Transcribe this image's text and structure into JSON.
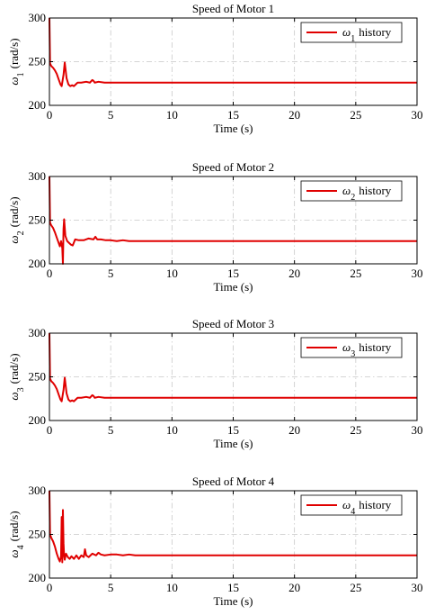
{
  "chart_data": [
    {
      "type": "line",
      "title": "Speed of Motor 1",
      "xlabel": "Time (s)",
      "ylabel_symbol": "ω",
      "ylabel_sub": "1",
      "ylabel_unit": "(rad/s)",
      "xlim": [
        0,
        30
      ],
      "ylim": [
        200,
        300
      ],
      "xticks": [
        "0",
        "5",
        "10",
        "15",
        "20",
        "25",
        "30"
      ],
      "yticks": [
        "200",
        "250",
        "300"
      ],
      "grid": true,
      "legend_position": "top-right",
      "legend": {
        "symbol": "ω",
        "sub": "1",
        "text": "history"
      },
      "color": "#e00000",
      "series": [
        {
          "x": [
            0,
            0.05,
            0.15,
            0.3,
            0.45,
            0.6,
            0.75,
            0.9,
            1.0,
            1.15,
            1.25,
            1.4,
            1.55,
            1.7,
            1.85,
            2.0,
            2.3,
            2.6,
            3.0,
            3.3,
            3.5,
            3.6,
            3.7,
            4.0,
            4.5,
            5,
            6,
            7,
            8,
            10,
            15,
            20,
            25,
            30
          ],
          "y": [
            300,
            248,
            245,
            243,
            240,
            236,
            230,
            224,
            222,
            235,
            249,
            231,
            224,
            222,
            223,
            222,
            226,
            226,
            227,
            226,
            229,
            228,
            226,
            227,
            226,
            226,
            226,
            226,
            226,
            226,
            226,
            226,
            226,
            226
          ]
        }
      ]
    },
    {
      "type": "line",
      "title": "Speed of Motor 2",
      "xlabel": "Time (s)",
      "ylabel_symbol": "ω",
      "ylabel_sub": "2",
      "ylabel_unit": "(rad/s)",
      "xlim": [
        0,
        30
      ],
      "ylim": [
        200,
        300
      ],
      "xticks": [
        "0",
        "5",
        "10",
        "15",
        "20",
        "25",
        "30"
      ],
      "yticks": [
        "200",
        "250",
        "300"
      ],
      "grid": true,
      "legend_position": "top-right",
      "legend": {
        "symbol": "ω",
        "sub": "2",
        "text": "history"
      },
      "color": "#e00000",
      "series": [
        {
          "x": [
            0,
            0.05,
            0.15,
            0.3,
            0.45,
            0.6,
            0.75,
            0.85,
            0.95,
            1.05,
            1.1,
            1.15,
            1.2,
            1.3,
            1.45,
            1.6,
            1.75,
            1.9,
            2.1,
            2.4,
            2.8,
            3.2,
            3.6,
            3.75,
            3.9,
            4.2,
            4.6,
            5,
            5.5,
            6,
            6.5,
            7,
            8,
            10,
            15,
            20,
            25,
            30
          ],
          "y": [
            300,
            247,
            244,
            241,
            236,
            230,
            224,
            220,
            226,
            218,
            200,
            240,
            251,
            232,
            226,
            224,
            222,
            221,
            228,
            227,
            227,
            229,
            228,
            231,
            228,
            228,
            227,
            227,
            226,
            227,
            226,
            226,
            226,
            226,
            226,
            226,
            226,
            226
          ]
        }
      ]
    },
    {
      "type": "line",
      "title": "Speed of Motor 3",
      "xlabel": "Time (s)",
      "ylabel_symbol": "ω",
      "ylabel_sub": "3",
      "ylabel_unit": "(rad/s)",
      "xlim": [
        0,
        30
      ],
      "ylim": [
        200,
        300
      ],
      "xticks": [
        "0",
        "5",
        "10",
        "15",
        "20",
        "25",
        "30"
      ],
      "yticks": [
        "200",
        "250",
        "300"
      ],
      "grid": true,
      "legend_position": "top-right",
      "legend": {
        "symbol": "ω",
        "sub": "3",
        "text": "history"
      },
      "color": "#e00000",
      "series": [
        {
          "x": [
            0,
            0.05,
            0.15,
            0.3,
            0.45,
            0.6,
            0.75,
            0.9,
            1.0,
            1.15,
            1.25,
            1.4,
            1.55,
            1.7,
            1.85,
            2.0,
            2.3,
            2.6,
            3.0,
            3.3,
            3.5,
            3.6,
            3.7,
            4.0,
            4.5,
            5,
            6,
            7,
            8,
            10,
            15,
            20,
            25,
            30
          ],
          "y": [
            300,
            248,
            245,
            243,
            240,
            236,
            230,
            224,
            222,
            235,
            249,
            231,
            224,
            222,
            223,
            222,
            226,
            226,
            227,
            226,
            229,
            228,
            226,
            227,
            226,
            226,
            226,
            226,
            226,
            226,
            226,
            226,
            226,
            226
          ]
        }
      ]
    },
    {
      "type": "line",
      "title": "Speed of Motor 4",
      "xlabel": "Time (s)",
      "ylabel_symbol": "ω",
      "ylabel_sub": "4",
      "ylabel_unit": "(rad/s)",
      "xlim": [
        0,
        30
      ],
      "ylim": [
        200,
        300
      ],
      "xticks": [
        "0",
        "5",
        "10",
        "15",
        "20",
        "25",
        "30"
      ],
      "yticks": [
        "200",
        "250",
        "300"
      ],
      "grid": true,
      "legend_position": "top-right",
      "legend": {
        "symbol": "ω",
        "sub": "4",
        "text": "history"
      },
      "color": "#e00000",
      "series": [
        {
          "x": [
            0,
            0.05,
            0.15,
            0.3,
            0.45,
            0.6,
            0.75,
            0.85,
            0.95,
            1.0,
            1.05,
            1.1,
            1.15,
            1.2,
            1.25,
            1.35,
            1.5,
            1.65,
            1.8,
            2.0,
            2.2,
            2.4,
            2.6,
            2.8,
            2.9,
            3.0,
            3.2,
            3.5,
            3.8,
            4.0,
            4.2,
            4.5,
            5,
            5.5,
            6,
            6.5,
            7,
            8,
            10,
            15,
            20,
            25,
            30
          ],
          "y": [
            300,
            250,
            246,
            242,
            236,
            228,
            222,
            219,
            225,
            270,
            218,
            278,
            240,
            225,
            221,
            228,
            224,
            222,
            225,
            222,
            226,
            222,
            226,
            224,
            233,
            226,
            224,
            228,
            226,
            229,
            227,
            226,
            227,
            227,
            226,
            227,
            226,
            226,
            226,
            226,
            226,
            226,
            226
          ]
        }
      ]
    }
  ]
}
